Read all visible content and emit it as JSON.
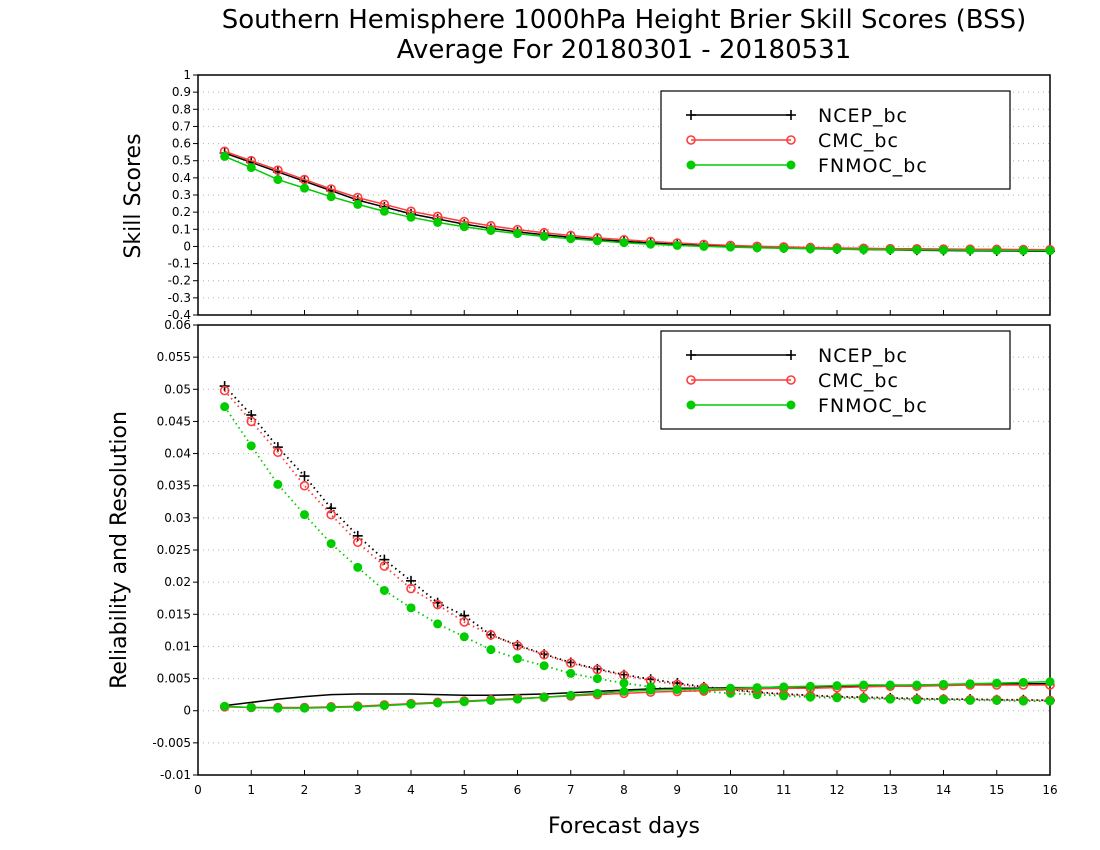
{
  "title_line1": "Southern Hemisphere 1000hPa Height Brier Skill Scores (BSS)",
  "title_line2": "Average For 20180301 - 20180531",
  "xlabel": "Forecast days",
  "colors": {
    "NCEP_bc": "#000000",
    "CMC_bc": "#ff3c3c",
    "FNMOC_bc": "#00cc00"
  },
  "chart_data": [
    {
      "type": "line",
      "ylabel": "Skill Scores",
      "xlim": [
        0,
        16
      ],
      "ylim": [
        -0.4,
        1
      ],
      "yticks": [
        "-0.4",
        "-0.3",
        "-0.2",
        "-0.1",
        "0",
        "0.1",
        "0.2",
        "0.3",
        "0.4",
        "0.5",
        "0.6",
        "0.7",
        "0.8",
        "0.9",
        "1"
      ],
      "xticks": [
        "0",
        "1",
        "2",
        "3",
        "4",
        "5",
        "6",
        "7",
        "8",
        "9",
        "10",
        "11",
        "12",
        "13",
        "14",
        "15",
        "16"
      ],
      "grid": true,
      "legend_position": "top-right",
      "x": [
        0.5,
        1,
        1.5,
        2,
        2.5,
        3,
        3.5,
        4,
        4.5,
        5,
        5.5,
        6,
        6.5,
        7,
        7.5,
        8,
        8.5,
        9,
        9.5,
        10,
        10.5,
        11,
        11.5,
        12,
        12.5,
        13,
        13.5,
        14,
        14.5,
        15,
        15.5,
        16
      ],
      "series": [
        {
          "name": "NCEP_bc",
          "marker": "plus",
          "style": "solid",
          "values": [
            0.545,
            0.49,
            0.435,
            0.38,
            0.325,
            0.27,
            0.23,
            0.19,
            0.16,
            0.13,
            0.105,
            0.085,
            0.068,
            0.053,
            0.04,
            0.03,
            0.02,
            0.012,
            0.005,
            0.0,
            -0.005,
            -0.009,
            -0.012,
            -0.015,
            -0.018,
            -0.02,
            -0.022,
            -0.024,
            -0.025,
            -0.026,
            -0.027,
            -0.028
          ]
        },
        {
          "name": "CMC_bc",
          "marker": "open-circle",
          "style": "solid",
          "values": [
            0.555,
            0.5,
            0.445,
            0.39,
            0.335,
            0.285,
            0.245,
            0.205,
            0.175,
            0.145,
            0.12,
            0.098,
            0.08,
            0.064,
            0.05,
            0.039,
            0.029,
            0.02,
            0.012,
            0.006,
            0.001,
            -0.003,
            -0.006,
            -0.009,
            -0.011,
            -0.013,
            -0.014,
            -0.015,
            -0.016,
            -0.017,
            -0.018,
            -0.019
          ]
        },
        {
          "name": "FNMOC_bc",
          "marker": "filled-circle",
          "style": "solid",
          "values": [
            0.525,
            0.46,
            0.39,
            0.34,
            0.29,
            0.245,
            0.205,
            0.17,
            0.14,
            0.115,
            0.093,
            0.075,
            0.058,
            0.045,
            0.033,
            0.022,
            0.013,
            0.006,
            0.0,
            -0.004,
            -0.008,
            -0.011,
            -0.014,
            -0.016,
            -0.018,
            -0.019,
            -0.02,
            -0.021,
            -0.022,
            -0.023,
            -0.024,
            -0.025
          ]
        }
      ]
    },
    {
      "type": "line",
      "ylabel": "Reliability and Resolution",
      "xlim": [
        0,
        16
      ],
      "ylim": [
        -0.01,
        0.06
      ],
      "yticks": [
        "-0.01",
        "-0.005",
        "0",
        "0.005",
        "0.01",
        "0.015",
        "0.02",
        "0.025",
        "0.03",
        "0.035",
        "0.04",
        "0.045",
        "0.05",
        "0.055",
        "0.06"
      ],
      "xticks": [
        "0",
        "1",
        "2",
        "3",
        "4",
        "5",
        "6",
        "7",
        "8",
        "9",
        "10",
        "11",
        "12",
        "13",
        "14",
        "15",
        "16"
      ],
      "grid": true,
      "legend_position": "top-right",
      "x": [
        0.5,
        1,
        1.5,
        2,
        2.5,
        3,
        3.5,
        4,
        4.5,
        5,
        5.5,
        6,
        6.5,
        7,
        7.5,
        8,
        8.5,
        9,
        9.5,
        10,
        10.5,
        11,
        11.5,
        12,
        12.5,
        13,
        13.5,
        14,
        14.5,
        15,
        15.5,
        16
      ],
      "series": [
        {
          "name": "NCEP_bc",
          "group": "resolution",
          "marker": "plus",
          "style": "dotted",
          "values": [
            0.0505,
            0.046,
            0.041,
            0.0365,
            0.0315,
            0.0272,
            0.0235,
            0.0202,
            0.0168,
            0.0148,
            0.0118,
            0.0102,
            0.0088,
            0.0075,
            0.0065,
            0.0056,
            0.0049,
            0.0043,
            0.0037,
            0.0033,
            0.0029,
            0.0026,
            0.0024,
            0.0022,
            0.0021,
            0.002,
            0.0019,
            0.0018,
            0.0018,
            0.0017,
            0.0017,
            0.0016
          ]
        },
        {
          "name": "CMC_bc",
          "group": "resolution",
          "marker": "open-circle",
          "style": "dotted",
          "values": [
            0.0498,
            0.045,
            0.0402,
            0.035,
            0.0305,
            0.0262,
            0.0225,
            0.019,
            0.0165,
            0.0138,
            0.0118,
            0.0101,
            0.0087,
            0.0074,
            0.0064,
            0.0055,
            0.0047,
            0.0041,
            0.0036,
            0.0032,
            0.0028,
            0.0025,
            0.0023,
            0.0021,
            0.002,
            0.0019,
            0.0018,
            0.0018,
            0.0017,
            0.0017,
            0.0016,
            0.0016
          ]
        },
        {
          "name": "FNMOC_bc",
          "group": "resolution",
          "marker": "filled-circle",
          "style": "dotted",
          "values": [
            0.0473,
            0.0412,
            0.0352,
            0.0305,
            0.026,
            0.0223,
            0.0187,
            0.016,
            0.0135,
            0.0115,
            0.0095,
            0.0081,
            0.007,
            0.0058,
            0.005,
            0.0043,
            0.0037,
            0.0033,
            0.003,
            0.0027,
            0.0025,
            0.0023,
            0.0021,
            0.002,
            0.0019,
            0.0018,
            0.0017,
            0.0017,
            0.0016,
            0.0016,
            0.0015,
            0.0015
          ]
        },
        {
          "name": "NCEP_bc",
          "group": "reliability",
          "marker": "none",
          "style": "solid",
          "values": [
            0.0008,
            0.0013,
            0.0018,
            0.0022,
            0.0025,
            0.0026,
            0.0026,
            0.0026,
            0.0025,
            0.0024,
            0.0024,
            0.0025,
            0.0026,
            0.0028,
            0.003,
            0.0032,
            0.0034,
            0.0035,
            0.0035,
            0.0036,
            0.0036,
            0.0037,
            0.0037,
            0.0038,
            0.0038,
            0.0039,
            0.004,
            0.004,
            0.0041,
            0.0041,
            0.0042,
            0.0042
          ]
        },
        {
          "name": "CMC_bc",
          "group": "reliability",
          "marker": "open-circle",
          "style": "solid",
          "values": [
            0.0006,
            0.0005,
            0.0005,
            0.0005,
            0.0006,
            0.0007,
            0.0009,
            0.0011,
            0.0013,
            0.0015,
            0.0017,
            0.0019,
            0.0021,
            0.0023,
            0.0025,
            0.0027,
            0.0029,
            0.003,
            0.0031,
            0.0033,
            0.0034,
            0.0035,
            0.0035,
            0.0036,
            0.0037,
            0.0038,
            0.0038,
            0.0039,
            0.004,
            0.004,
            0.004,
            0.004
          ]
        },
        {
          "name": "FNMOC_bc",
          "group": "reliability",
          "marker": "filled-circle",
          "style": "solid",
          "values": [
            0.0007,
            0.0005,
            0.0004,
            0.0004,
            0.0005,
            0.0006,
            0.0008,
            0.001,
            0.0012,
            0.0014,
            0.0016,
            0.0018,
            0.0021,
            0.0024,
            0.0027,
            0.003,
            0.0032,
            0.0033,
            0.0034,
            0.0035,
            0.0036,
            0.0037,
            0.0038,
            0.0039,
            0.004,
            0.004,
            0.004,
            0.0041,
            0.0042,
            0.0043,
            0.0044,
            0.0045
          ]
        }
      ]
    }
  ]
}
